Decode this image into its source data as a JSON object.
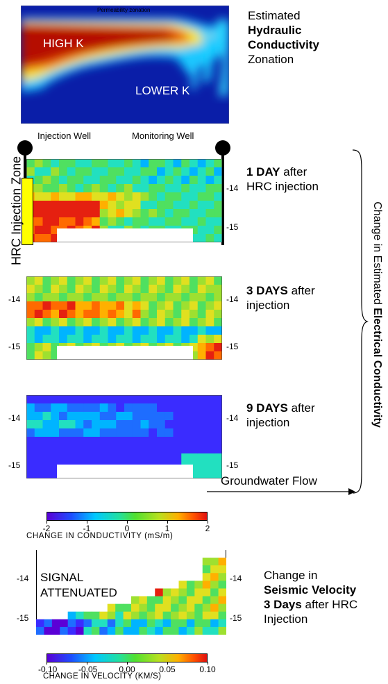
{
  "hydraulic": {
    "panel_title": "Permeability zonation",
    "high_label": "HIGH K",
    "lower_label": "LOWER K",
    "caption_l1": "Estimated",
    "caption_l2": "Hydraulic",
    "caption_l3": "Conductivity",
    "caption_l4": "Zonation"
  },
  "wells": {
    "injection": "Injection Well",
    "monitoring": "Monitoring Well",
    "zone_label": "HRC Injection Zone"
  },
  "panels": [
    {
      "bold": "1 DAY",
      "rest": " after",
      "line2": "HRC injection",
      "ticks": [
        "-14",
        "-15"
      ]
    },
    {
      "bold": "3 DAYS",
      "rest": " after",
      "line2": "injection",
      "ticks": [
        "-14",
        "-15"
      ]
    },
    {
      "bold": "9 DAYS",
      "rest": " after",
      "line2": "injection",
      "ticks": [
        "-14",
        "-15"
      ]
    }
  ],
  "brace_label_normal": "Change in Estimated ",
  "brace_label_bold": "Electrical Conductivity",
  "groundwater_label": "Groundwater Flow",
  "conductivity_bar": {
    "ticks": [
      "-2",
      "-1",
      "0",
      "1",
      "2"
    ],
    "label": "CHANGE IN CONDUCTIVITY (mS/m)"
  },
  "seismic": {
    "signal_l1": "SIGNAL",
    "signal_l2": "ATTENUATED",
    "ticks": [
      "-14",
      "-15"
    ],
    "caption_l1": "Change in",
    "caption_l2": "Seismic Velocity",
    "caption_l3_bold": "3 Days",
    "caption_l3_rest": " after HRC",
    "caption_l4": "Injection"
  },
  "velocity_bar": {
    "ticks": [
      "-0.10",
      "-0.05",
      "0.00",
      "0.05",
      "0.10"
    ],
    "label": "CHANGE IN VELOCITY (KM/S)"
  }
}
